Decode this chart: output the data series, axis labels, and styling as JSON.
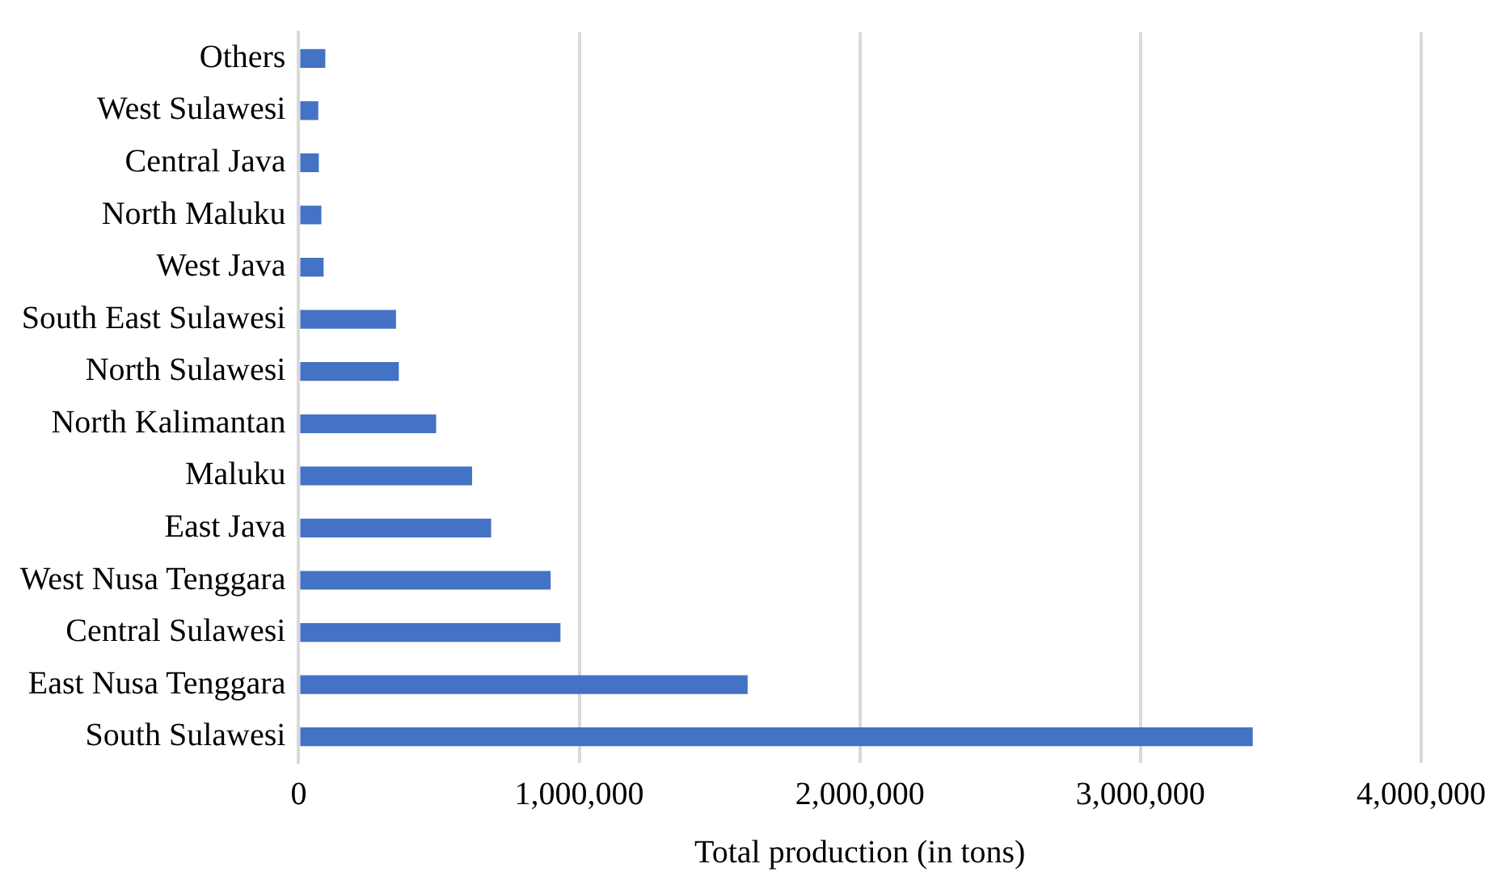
{
  "chart_data": {
    "type": "bar",
    "orientation": "horizontal",
    "xlabel": "Total production (in tons)",
    "categories": [
      "Others",
      "West Sulawesi",
      "Central Java",
      "North Maluku",
      "West Java",
      "South East Sulawesi",
      "North Sulawesi",
      "North Kalimantan",
      "Maluku",
      "East Java",
      "West Nusa Tenggara",
      "Central Sulawesi",
      "East Nusa Tenggara",
      "South Sulawesi"
    ],
    "values": [
      95000,
      70000,
      72000,
      81000,
      89000,
      347000,
      357000,
      490000,
      618000,
      686000,
      898000,
      933000,
      1600000,
      3400000
    ],
    "color": "#4472c4",
    "xlim": [
      0,
      4000000
    ],
    "xticks": [
      {
        "value": 0,
        "label": "0"
      },
      {
        "value": 1000000,
        "label": "1,000,000"
      },
      {
        "value": 2000000,
        "label": "2,000,000"
      },
      {
        "value": 3000000,
        "label": "3,000,000"
      },
      {
        "value": 4000000,
        "label": "4,000,000"
      }
    ],
    "grid": "x",
    "legend": false
  }
}
